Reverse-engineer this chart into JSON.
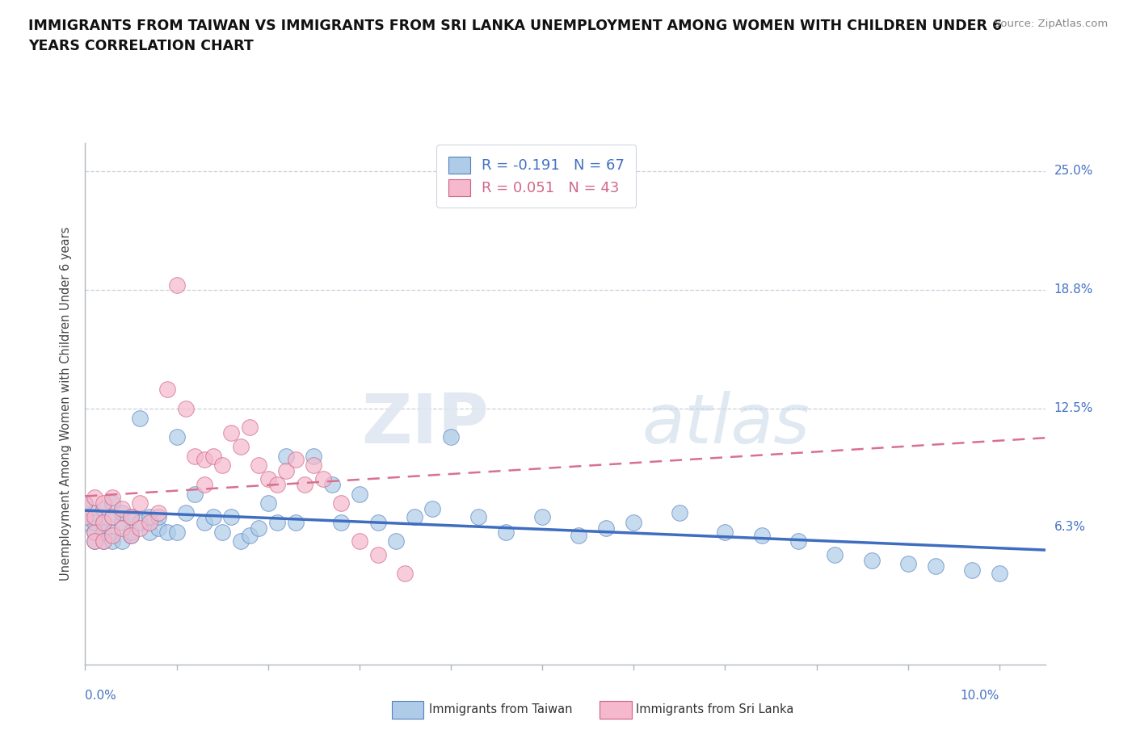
{
  "title_line1": "IMMIGRANTS FROM TAIWAN VS IMMIGRANTS FROM SRI LANKA UNEMPLOYMENT AMONG WOMEN WITH CHILDREN UNDER 6",
  "title_line2": "YEARS CORRELATION CHART",
  "source": "Source: ZipAtlas.com",
  "ylabel": "Unemployment Among Women with Children Under 6 years",
  "xlim": [
    0.0,
    0.105
  ],
  "ylim": [
    -0.01,
    0.265
  ],
  "plot_ylim": [
    -0.01,
    0.265
  ],
  "ytick_vals": [
    0.0,
    0.0625,
    0.125,
    0.1875,
    0.25
  ],
  "ytick_labels": [
    "",
    "6.3%",
    "12.5%",
    "18.8%",
    "25.0%"
  ],
  "hgrid_values": [
    0.25,
    0.1875,
    0.125
  ],
  "taiwan_color": "#aecce8",
  "sri_lanka_color": "#f5b8cc",
  "taiwan_edge_color": "#5580c0",
  "sri_lanka_edge_color": "#d06080",
  "taiwan_line_color": "#3f6dbf",
  "sri_lanka_line_color": "#d87090",
  "legend_taiwan_label": "Immigrants from Taiwan",
  "legend_sri_lanka_label": "Immigrants from Sri Lanka",
  "R_taiwan": "-0.191",
  "N_taiwan": "67",
  "R_sri_lanka": "0.051",
  "N_sri_lanka": "43",
  "taiwan_x": [
    0.0,
    0.0,
    0.001,
    0.001,
    0.001,
    0.001,
    0.002,
    0.002,
    0.002,
    0.002,
    0.003,
    0.003,
    0.003,
    0.003,
    0.004,
    0.004,
    0.004,
    0.005,
    0.005,
    0.005,
    0.006,
    0.006,
    0.007,
    0.007,
    0.008,
    0.008,
    0.009,
    0.01,
    0.01,
    0.011,
    0.012,
    0.013,
    0.014,
    0.015,
    0.016,
    0.017,
    0.018,
    0.019,
    0.02,
    0.021,
    0.022,
    0.023,
    0.025,
    0.027,
    0.028,
    0.03,
    0.032,
    0.034,
    0.036,
    0.038,
    0.04,
    0.043,
    0.046,
    0.05,
    0.054,
    0.057,
    0.06,
    0.065,
    0.07,
    0.074,
    0.078,
    0.082,
    0.086,
    0.09,
    0.093,
    0.097,
    0.1
  ],
  "taiwan_y": [
    0.065,
    0.075,
    0.06,
    0.07,
    0.055,
    0.065,
    0.055,
    0.065,
    0.072,
    0.06,
    0.06,
    0.068,
    0.075,
    0.055,
    0.055,
    0.065,
    0.07,
    0.058,
    0.068,
    0.06,
    0.12,
    0.065,
    0.06,
    0.068,
    0.062,
    0.068,
    0.06,
    0.11,
    0.06,
    0.07,
    0.08,
    0.065,
    0.068,
    0.06,
    0.068,
    0.055,
    0.058,
    0.062,
    0.075,
    0.065,
    0.1,
    0.065,
    0.1,
    0.085,
    0.065,
    0.08,
    0.065,
    0.055,
    0.068,
    0.072,
    0.11,
    0.068,
    0.06,
    0.068,
    0.058,
    0.062,
    0.065,
    0.07,
    0.06,
    0.058,
    0.055,
    0.048,
    0.045,
    0.043,
    0.042,
    0.04,
    0.038
  ],
  "sri_lanka_x": [
    0.0,
    0.0,
    0.001,
    0.001,
    0.001,
    0.001,
    0.002,
    0.002,
    0.002,
    0.003,
    0.003,
    0.003,
    0.004,
    0.004,
    0.005,
    0.005,
    0.006,
    0.006,
    0.007,
    0.008,
    0.009,
    0.01,
    0.011,
    0.012,
    0.013,
    0.013,
    0.014,
    0.015,
    0.016,
    0.017,
    0.018,
    0.019,
    0.02,
    0.021,
    0.022,
    0.023,
    0.024,
    0.025,
    0.026,
    0.028,
    0.03,
    0.032,
    0.035
  ],
  "sri_lanka_y": [
    0.068,
    0.075,
    0.06,
    0.068,
    0.055,
    0.078,
    0.055,
    0.065,
    0.075,
    0.058,
    0.068,
    0.078,
    0.062,
    0.072,
    0.058,
    0.068,
    0.062,
    0.075,
    0.065,
    0.07,
    0.135,
    0.19,
    0.125,
    0.1,
    0.085,
    0.098,
    0.1,
    0.095,
    0.112,
    0.105,
    0.115,
    0.095,
    0.088,
    0.085,
    0.092,
    0.098,
    0.085,
    0.095,
    0.088,
    0.075,
    0.055,
    0.048,
    0.038
  ],
  "watermark_zip": "ZIP",
  "watermark_atlas": "atlas",
  "background_color": "#ffffff"
}
